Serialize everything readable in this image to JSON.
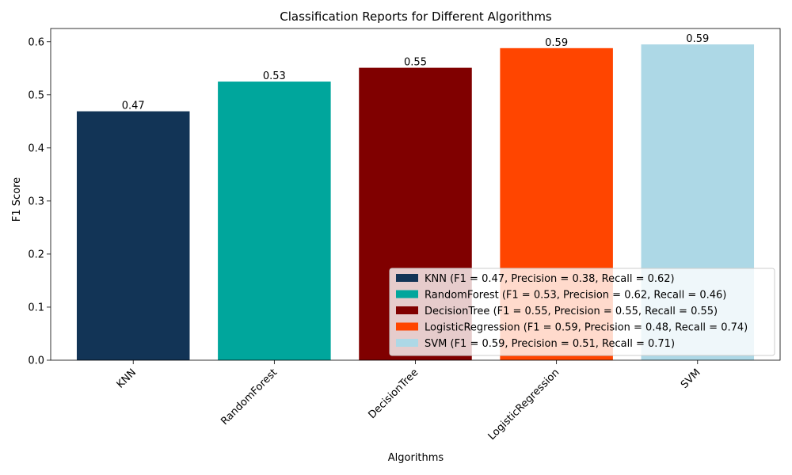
{
  "chart_data": {
    "type": "bar",
    "title": "Classification Reports for Different Algorithms",
    "xlabel": "Algorithms",
    "ylabel": "F1 Score",
    "ylim": [
      0,
      0.625
    ],
    "yticks": [
      "0.0",
      "0.1",
      "0.2",
      "0.3",
      "0.4",
      "0.5",
      "0.6"
    ],
    "categories": [
      "KNN",
      "RandomForest",
      "DecisionTree",
      "LogisticRegression",
      "SVM"
    ],
    "values": [
      0.469,
      0.525,
      0.551,
      0.588,
      0.595
    ],
    "data_labels": [
      "0.47",
      "0.53",
      "0.55",
      "0.59",
      "0.59"
    ],
    "colors": [
      "#123456",
      "#00A69C",
      "#800000",
      "#FF4500",
      "#ADD8E6"
    ],
    "grid": false,
    "legend_position": "lower right",
    "legend": [
      "KNN (F1 = 0.47, Precision = 0.38, Recall = 0.62)",
      "RandomForest (F1 = 0.53, Precision = 0.62, Recall = 0.46)",
      "DecisionTree (F1 = 0.55, Precision = 0.55, Recall = 0.55)",
      "LogisticRegression (F1 = 0.59, Precision = 0.48, Recall = 0.74)",
      "SVM (F1 = 0.59, Precision = 0.51, Recall = 0.71)"
    ]
  }
}
